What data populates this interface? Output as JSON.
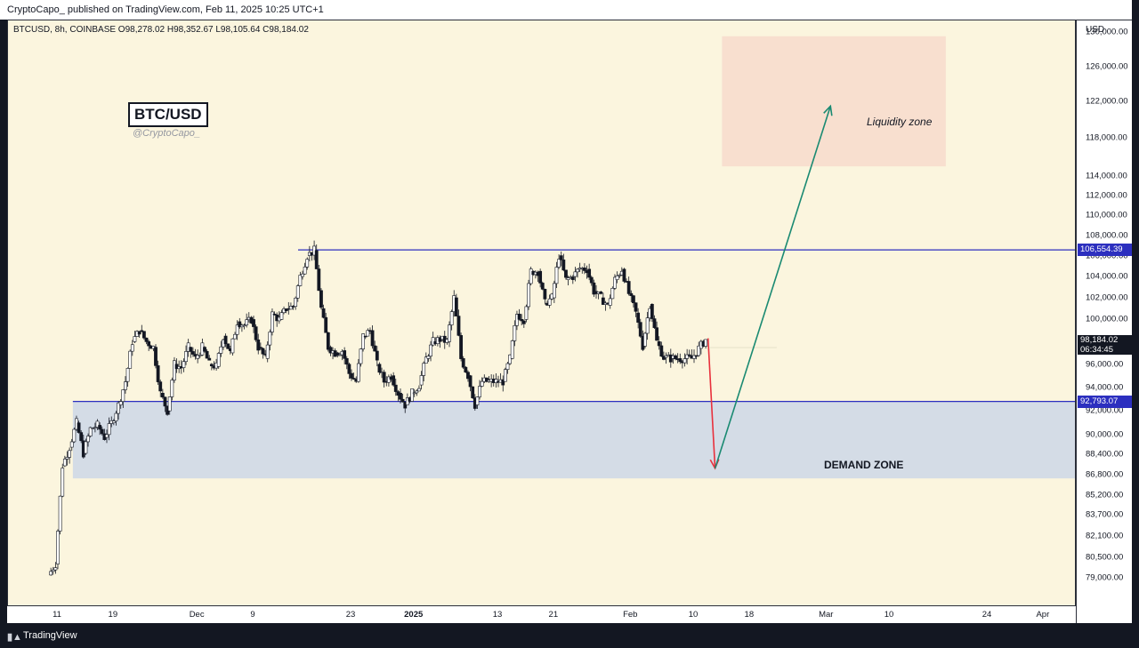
{
  "header": {
    "published_line": "CryptoCapo_ published on TradingView.com, Feb 11, 2025 10:25 UTC+1"
  },
  "symbol_line": "BTCUSD, 8h, COINBASE  O98,278.02  H98,352.67  L98,105.64  C98,184.02",
  "badge": "BTC/USD",
  "handle": "@CryptoCapo_",
  "footer": {
    "brand": "TradingView"
  },
  "price_scale": {
    "currency": "USD",
    "ticks": [
      "130,000.00",
      "126,000.00",
      "122,000.00",
      "118,000.00",
      "114,000.00",
      "112,000.00",
      "110,000.00",
      "108,000.00",
      "106,000.00",
      "104,000.00",
      "102,000.00",
      "100,000.00",
      "96,000.00",
      "94,000.00",
      "92,000.00",
      "90,000.00",
      "88,400.00",
      "86,800.00",
      "85,200.00",
      "83,700.00",
      "82,100.00",
      "80,500.00",
      "79,000.00"
    ],
    "resistance_label": "106,554.39",
    "support_label": "92,793.07",
    "last_price_label": "98,184.02",
    "countdown_label": "06:34:45"
  },
  "time_scale": {
    "ticks": [
      {
        "label": "11",
        "date": "2024-11-11",
        "bold": false
      },
      {
        "label": "19",
        "date": "2024-11-19",
        "bold": false
      },
      {
        "label": "Dec",
        "date": "2024-12-01",
        "bold": false
      },
      {
        "label": "9",
        "date": "2024-12-09",
        "bold": false
      },
      {
        "label": "23",
        "date": "2024-12-23",
        "bold": false
      },
      {
        "label": "2025",
        "date": "2025-01-01",
        "bold": true
      },
      {
        "label": "13",
        "date": "2025-01-13",
        "bold": false
      },
      {
        "label": "21",
        "date": "2025-01-21",
        "bold": false
      },
      {
        "label": "Feb",
        "date": "2025-02-01",
        "bold": false
      },
      {
        "label": "10",
        "date": "2025-02-10",
        "bold": false
      },
      {
        "label": "18",
        "date": "2025-02-18",
        "bold": false
      },
      {
        "label": "Mar",
        "date": "2025-03-01",
        "bold": false
      },
      {
        "label": "10",
        "date": "2025-03-10",
        "bold": false
      },
      {
        "label": "24",
        "date": "2025-03-24",
        "bold": false
      },
      {
        "label": "Apr",
        "date": "2025-04-01",
        "bold": false
      }
    ]
  },
  "zones": {
    "liquidity": {
      "label": "Liquidity zone",
      "price_low": 115000,
      "price_high": 129500,
      "start": "2025-02-14",
      "end": "2025-03-18",
      "color": "#f8dfcf"
    },
    "demand": {
      "label": "DEMAND ZONE",
      "price_low": 86500,
      "price_high": 92793.07,
      "start": "2024-11-12",
      "end": "2025-04-04",
      "color": "#d4dce6"
    }
  },
  "levels": {
    "resistance": 106554.39,
    "support": 92793.07,
    "color": "#2c2fbf"
  },
  "arrows": [
    {
      "color": "#e8303c",
      "from": {
        "date": "2025-02-12",
        "price": 98300
      },
      "to": {
        "date": "2025-02-13",
        "price": 87300
      }
    },
    {
      "color": "#1a8a72",
      "from": {
        "date": "2025-02-13",
        "price": 87300
      },
      "to": {
        "date": "2025-03-01",
        "price": 121500
      }
    }
  ],
  "colors": {
    "up": "#ffffff",
    "down": "#131722",
    "wick": "#131722"
  },
  "chart_data": {
    "type": "candlestick",
    "title": "BTCUSD, 8h, COINBASE",
    "xlabel": "",
    "ylabel": "USD",
    "ylim": [
      78500,
      131500
    ],
    "x_range": [
      "2024-11-07",
      "2025-04-05"
    ],
    "scale": "log",
    "grid": false,
    "last_price": 98184.02,
    "ohlc_last": {
      "open": 98278.02,
      "high": 98352.67,
      "low": 98105.64,
      "close": 98184.02
    },
    "closes": [
      {
        "date": "2024-11-10",
        "close": 80000
      },
      {
        "date": "2024-11-11",
        "close": 87500
      },
      {
        "date": "2024-11-12",
        "close": 89000
      },
      {
        "date": "2024-11-13",
        "close": 91000
      },
      {
        "date": "2024-11-14",
        "close": 88500
      },
      {
        "date": "2024-11-15",
        "close": 90500
      },
      {
        "date": "2024-11-16",
        "close": 90800
      },
      {
        "date": "2024-11-17",
        "close": 89800
      },
      {
        "date": "2024-11-18",
        "close": 91000
      },
      {
        "date": "2024-11-19",
        "close": 92500
      },
      {
        "date": "2024-11-20",
        "close": 94500
      },
      {
        "date": "2024-11-21",
        "close": 98000
      },
      {
        "date": "2024-11-22",
        "close": 99000
      },
      {
        "date": "2024-11-23",
        "close": 98000
      },
      {
        "date": "2024-11-24",
        "close": 97500
      },
      {
        "date": "2024-11-25",
        "close": 93500
      },
      {
        "date": "2024-11-26",
        "close": 92000
      },
      {
        "date": "2024-11-27",
        "close": 96000
      },
      {
        "date": "2024-11-28",
        "close": 95700
      },
      {
        "date": "2024-11-29",
        "close": 97500
      },
      {
        "date": "2024-11-30",
        "close": 96500
      },
      {
        "date": "2024-12-01",
        "close": 97500
      },
      {
        "date": "2024-12-02",
        "close": 96000
      },
      {
        "date": "2024-12-03",
        "close": 95800
      },
      {
        "date": "2024-12-04",
        "close": 98500
      },
      {
        "date": "2024-12-05",
        "close": 97000
      },
      {
        "date": "2024-12-06",
        "close": 99800
      },
      {
        "date": "2024-12-07",
        "close": 99500
      },
      {
        "date": "2024-12-08",
        "close": 100000
      },
      {
        "date": "2024-12-09",
        "close": 97500
      },
      {
        "date": "2024-12-10",
        "close": 96500
      },
      {
        "date": "2024-12-11",
        "close": 100500
      },
      {
        "date": "2024-12-12",
        "close": 100000
      },
      {
        "date": "2024-12-13",
        "close": 101000
      },
      {
        "date": "2024-12-14",
        "close": 101200
      },
      {
        "date": "2024-12-15",
        "close": 104000
      },
      {
        "date": "2024-12-16",
        "close": 106000
      },
      {
        "date": "2024-12-17",
        "close": 106500
      },
      {
        "date": "2024-12-18",
        "close": 101000
      },
      {
        "date": "2024-12-19",
        "close": 97500
      },
      {
        "date": "2024-12-20",
        "close": 97000
      },
      {
        "date": "2024-12-21",
        "close": 97200
      },
      {
        "date": "2024-12-22",
        "close": 95200
      },
      {
        "date": "2024-12-23",
        "close": 94500
      },
      {
        "date": "2024-12-24",
        "close": 98500
      },
      {
        "date": "2024-12-25",
        "close": 99000
      },
      {
        "date": "2024-12-26",
        "close": 96000
      },
      {
        "date": "2024-12-27",
        "close": 94500
      },
      {
        "date": "2024-12-28",
        "close": 95000
      },
      {
        "date": "2024-12-29",
        "close": 93500
      },
      {
        "date": "2024-12-30",
        "close": 92500
      },
      {
        "date": "2024-12-31",
        "close": 93500
      },
      {
        "date": "2025-01-01",
        "close": 94200
      },
      {
        "date": "2025-01-02",
        "close": 96500
      },
      {
        "date": "2025-01-03",
        "close": 98000
      },
      {
        "date": "2025-01-04",
        "close": 98200
      },
      {
        "date": "2025-01-05",
        "close": 98000
      },
      {
        "date": "2025-01-06",
        "close": 102000
      },
      {
        "date": "2025-01-07",
        "close": 96500
      },
      {
        "date": "2025-01-08",
        "close": 95000
      },
      {
        "date": "2025-01-09",
        "close": 92500
      },
      {
        "date": "2025-01-10",
        "close": 94500
      },
      {
        "date": "2025-01-11",
        "close": 94500
      },
      {
        "date": "2025-01-12",
        "close": 94500
      },
      {
        "date": "2025-01-13",
        "close": 94500
      },
      {
        "date": "2025-01-14",
        "close": 96500
      },
      {
        "date": "2025-01-15",
        "close": 100500
      },
      {
        "date": "2025-01-16",
        "close": 100000
      },
      {
        "date": "2025-01-17",
        "close": 104500
      },
      {
        "date": "2025-01-18",
        "close": 104500
      },
      {
        "date": "2025-01-19",
        "close": 101500
      },
      {
        "date": "2025-01-20",
        "close": 102000
      },
      {
        "date": "2025-01-21",
        "close": 106000
      },
      {
        "date": "2025-01-22",
        "close": 103700
      },
      {
        "date": "2025-01-23",
        "close": 104000
      },
      {
        "date": "2025-01-24",
        "close": 104800
      },
      {
        "date": "2025-01-25",
        "close": 104700
      },
      {
        "date": "2025-01-26",
        "close": 102600
      },
      {
        "date": "2025-01-27",
        "close": 102000
      },
      {
        "date": "2025-01-28",
        "close": 101300
      },
      {
        "date": "2025-01-29",
        "close": 103700
      },
      {
        "date": "2025-01-30",
        "close": 104700
      },
      {
        "date": "2025-01-31",
        "close": 102400
      },
      {
        "date": "2025-02-01",
        "close": 100600
      },
      {
        "date": "2025-02-02",
        "close": 97600
      },
      {
        "date": "2025-02-03",
        "close": 101400
      },
      {
        "date": "2025-02-04",
        "close": 98000
      },
      {
        "date": "2025-02-05",
        "close": 96600
      },
      {
        "date": "2025-02-06",
        "close": 96500
      },
      {
        "date": "2025-02-07",
        "close": 96500
      },
      {
        "date": "2025-02-08",
        "close": 96500
      },
      {
        "date": "2025-02-09",
        "close": 96500
      },
      {
        "date": "2025-02-10",
        "close": 97400
      },
      {
        "date": "2025-02-11",
        "close": 98184.02
      }
    ]
  }
}
